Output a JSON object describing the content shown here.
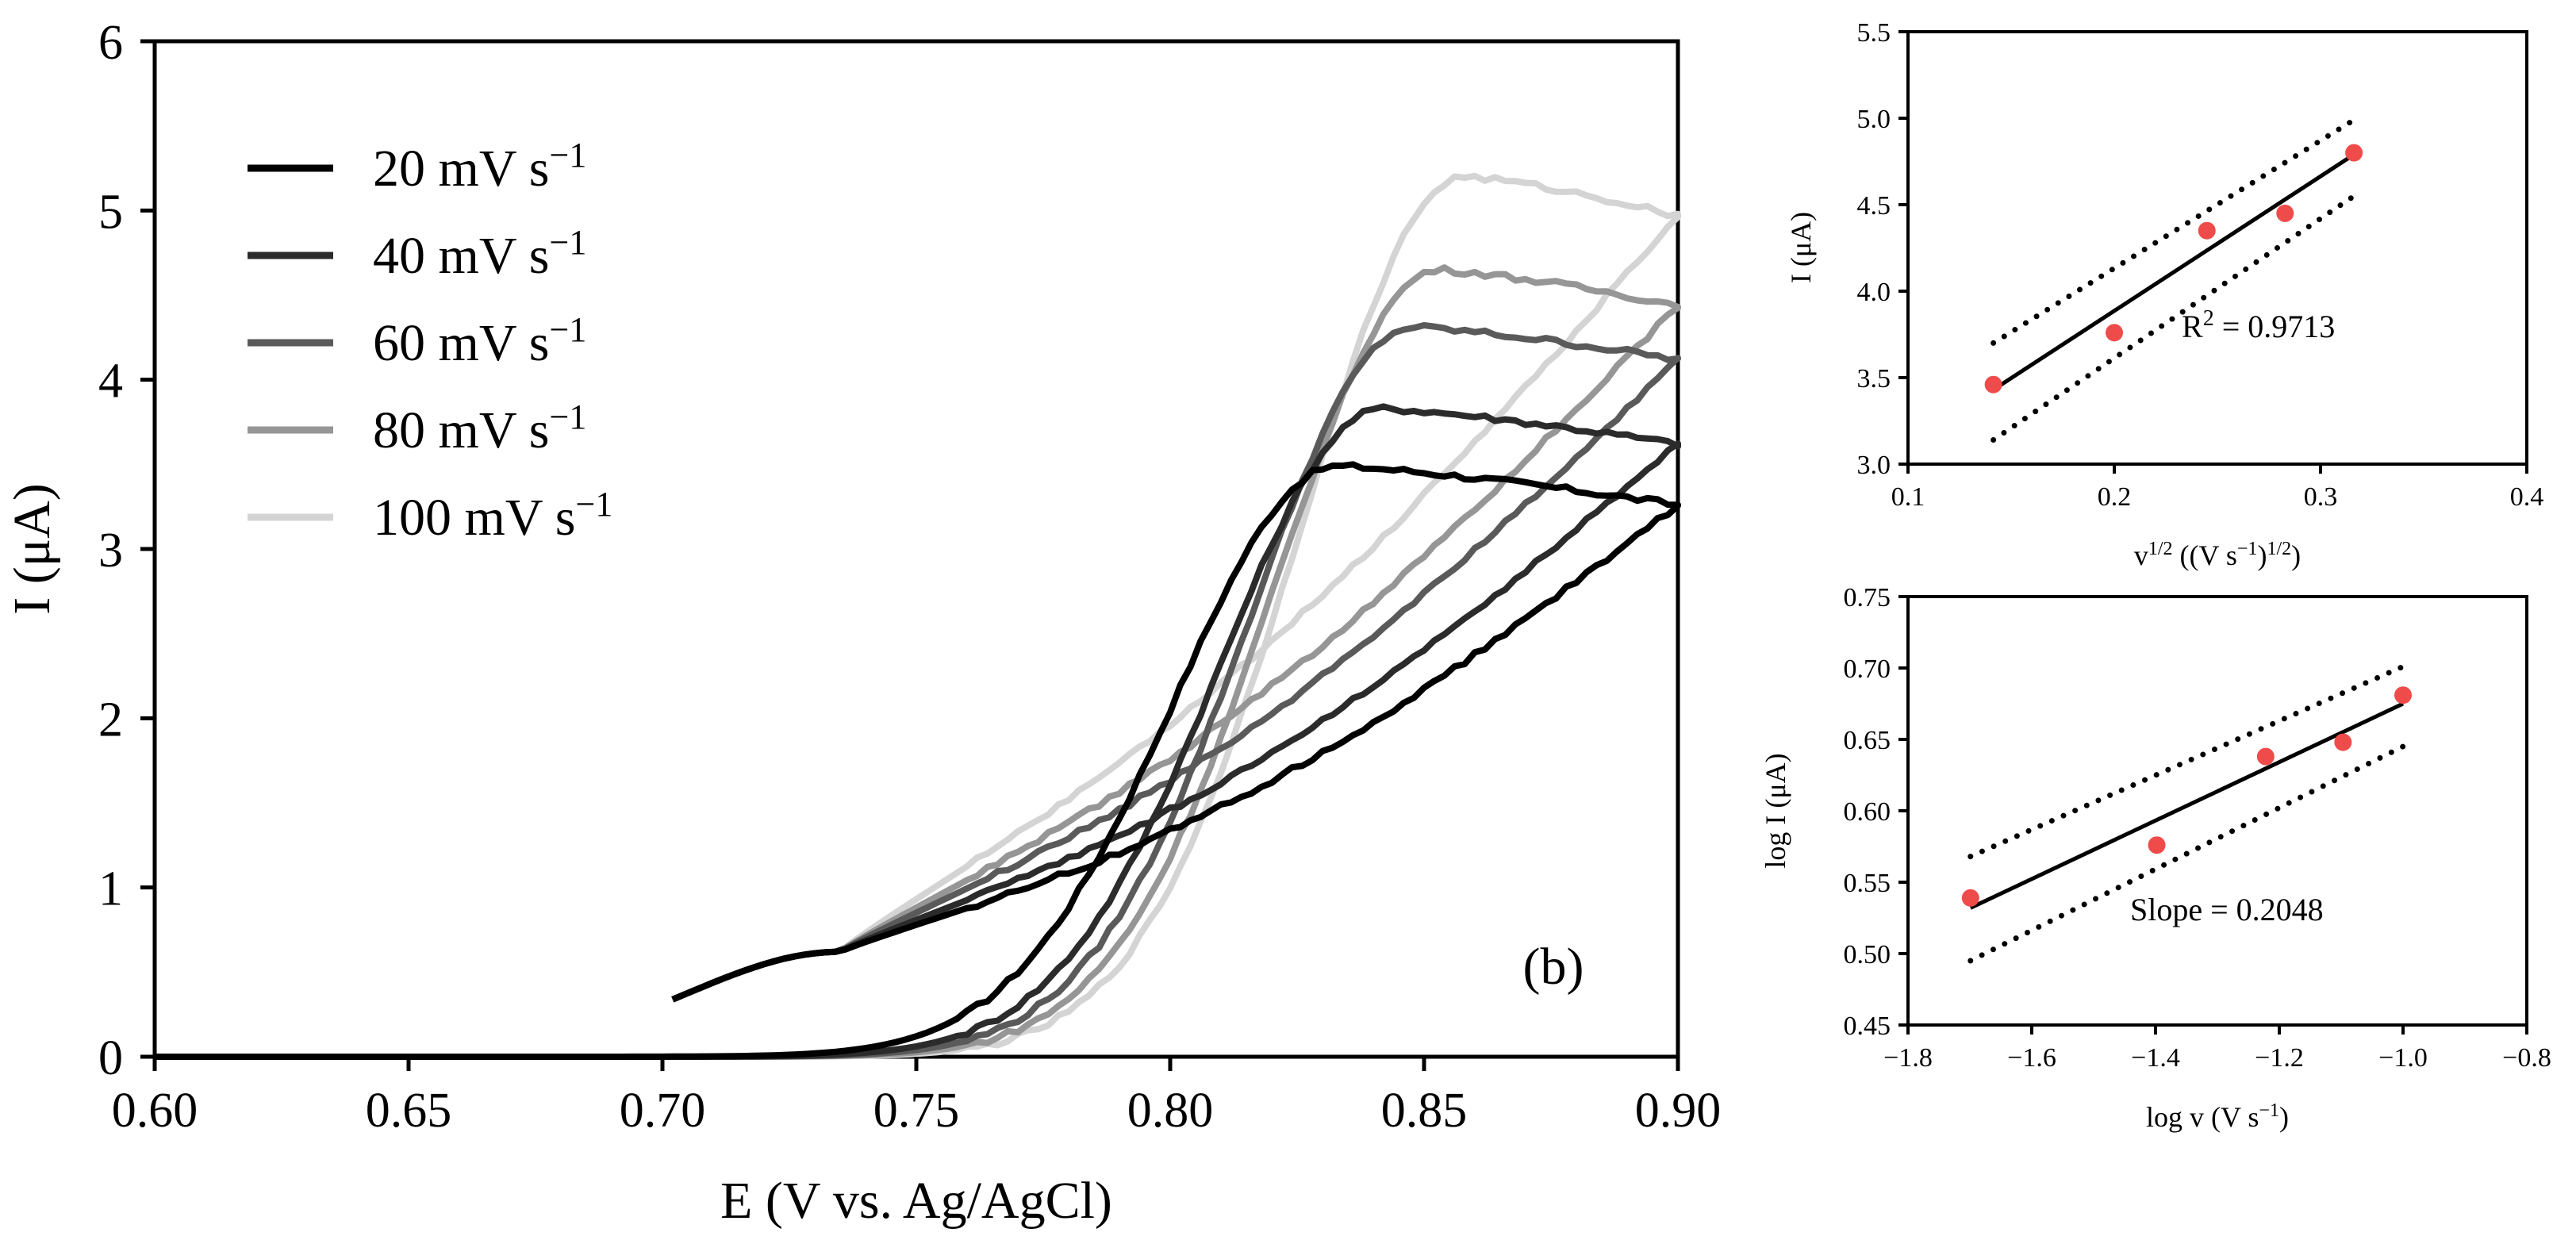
{
  "chart_data": [
    {
      "type": "line",
      "panel_label": "(b)",
      "xlabel": "E (V vs. Ag/AgCl)",
      "ylabel": "I (μA)",
      "xlim": [
        0.6,
        0.9
      ],
      "ylim": [
        0,
        6
      ],
      "xticks": [
        "0.60",
        "0.65",
        "0.70",
        "0.75",
        "0.80",
        "0.85",
        "0.90"
      ],
      "yticks": [
        "0",
        "1",
        "2",
        "3",
        "4",
        "5",
        "6"
      ],
      "legend_position": "top-left",
      "series": [
        {
          "name": "20 mV s",
          "sup": "−1",
          "color": "#000000",
          "peak": 3.49,
          "peak_e": 0.833,
          "end": 3.26,
          "ret": 0.32
        },
        {
          "name": "40 mV s",
          "sup": "−1",
          "color": "#2b2b2b",
          "peak": 3.83,
          "peak_e": 0.842,
          "end": 3.62,
          "ret": 0.36
        },
        {
          "name": "60 mV s",
          "sup": "−1",
          "color": "#5a5a5a",
          "peak": 4.31,
          "peak_e": 0.848,
          "end": 4.12,
          "ret": 0.41
        },
        {
          "name": "80 mV s",
          "sup": "−1",
          "color": "#969696",
          "peak": 4.65,
          "peak_e": 0.853,
          "end": 4.44,
          "ret": 0.45
        },
        {
          "name": "100 mV s",
          "sup": "−1",
          "color": "#d4d4d4",
          "peak": 5.2,
          "peak_e": 0.858,
          "end": 4.97,
          "ret": 0.5
        }
      ]
    },
    {
      "type": "scatter",
      "xlabel_base": "v",
      "xlabel_sup1": "1/2",
      "xlabel_mid": " ((V s",
      "xlabel_sup2": "−1",
      "xlabel_mid2": ")",
      "xlabel_sup3": "1/2",
      "xlabel_end": ")",
      "ylabel": "I (μA)",
      "xlim": [
        0.1,
        0.4
      ],
      "ylim": [
        3.0,
        5.5
      ],
      "xticks": [
        "0.1",
        "0.2",
        "0.3",
        "0.4"
      ],
      "yticks": [
        "3.0",
        "3.5",
        "4.0",
        "4.5",
        "5.0",
        "5.5"
      ],
      "x": [
        0.1414,
        0.2,
        0.2449,
        0.2828,
        0.3162
      ],
      "y": [
        3.46,
        3.76,
        4.35,
        4.45,
        4.8
      ],
      "fit": {
        "x": [
          0.1414,
          0.3162
        ],
        "y": [
          3.43,
          4.79
        ]
      },
      "band_upper": {
        "x": [
          0.1414,
          0.3162
        ],
        "y": [
          3.7,
          4.99
        ]
      },
      "band_lower": {
        "x": [
          0.1414,
          0.3162
        ],
        "y": [
          3.14,
          4.55
        ]
      },
      "annotation_base": "R",
      "annotation_sup": "2",
      "annotation_rest": " = 0.9713"
    },
    {
      "type": "scatter",
      "xlabel_base": "log v (V s",
      "xlabel_sup": "−1",
      "xlabel_end": ")",
      "ylabel": "log I (μA)",
      "xlim": [
        -1.8,
        -0.8
      ],
      "ylim": [
        0.45,
        0.75
      ],
      "xticks": [
        "−1.8",
        "−1.6",
        "−1.4",
        "−1.2",
        "−1.0",
        "−0.8"
      ],
      "yticks": [
        "0.45",
        "0.50",
        "0.55",
        "0.60",
        "0.65",
        "0.70",
        "0.75"
      ],
      "x": [
        -1.699,
        -1.398,
        -1.222,
        -1.097,
        -1.0
      ],
      "y": [
        0.539,
        0.576,
        0.638,
        0.648,
        0.681
      ],
      "fit": {
        "x": [
          -1.699,
          -1.0
        ],
        "y": [
          0.532,
          0.675
        ]
      },
      "band_upper": {
        "x": [
          -1.699,
          -1.0
        ],
        "y": [
          0.568,
          0.701
        ]
      },
      "band_lower": {
        "x": [
          -1.699,
          -1.0
        ],
        "y": [
          0.495,
          0.645
        ]
      },
      "annotation": "Slope = 0.2048"
    }
  ]
}
